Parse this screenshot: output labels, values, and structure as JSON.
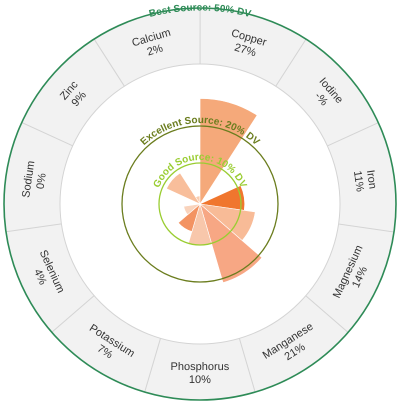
{
  "chart_data": {
    "type": "polar-area",
    "title": "",
    "rings": [
      {
        "label": "Best Source: 50% DV",
        "value": 50,
        "color": "#2e8b57"
      },
      {
        "label": "Excellent Source: 20% DV",
        "value": 20,
        "color": "#6b7d1e"
      },
      {
        "label": "Good Source: 10% DV",
        "value": 10,
        "color": "#9acd32"
      }
    ],
    "categories": [
      "Calcium",
      "Copper",
      "Iodine",
      "Iron",
      "Magnesium",
      "Manganese",
      "Phosphorus",
      "Potassium",
      "Selenium",
      "Sodium",
      "Zinc"
    ],
    "value_labels": [
      "2%",
      "27%",
      "-%",
      "11%",
      "14%",
      "21%",
      "10%",
      "7%",
      "4%",
      "0%",
      "9%"
    ],
    "values": [
      2,
      27,
      null,
      11,
      14,
      21,
      10,
      7,
      4,
      0,
      9
    ],
    "colors": {
      "copper": "#f4a26f",
      "iron": "#ef6a1c",
      "magnesium": "#f7b58e",
      "manganese": "#f6a07a",
      "phosphorus": "#f7c2a4",
      "potassium": "#f28a55",
      "selenium": "#f9cfb6",
      "zinc": "#f7b893",
      "calcium": "#f9c8a8",
      "outer_band": "#f2f2f2",
      "divider": "#d4d4d4"
    }
  }
}
